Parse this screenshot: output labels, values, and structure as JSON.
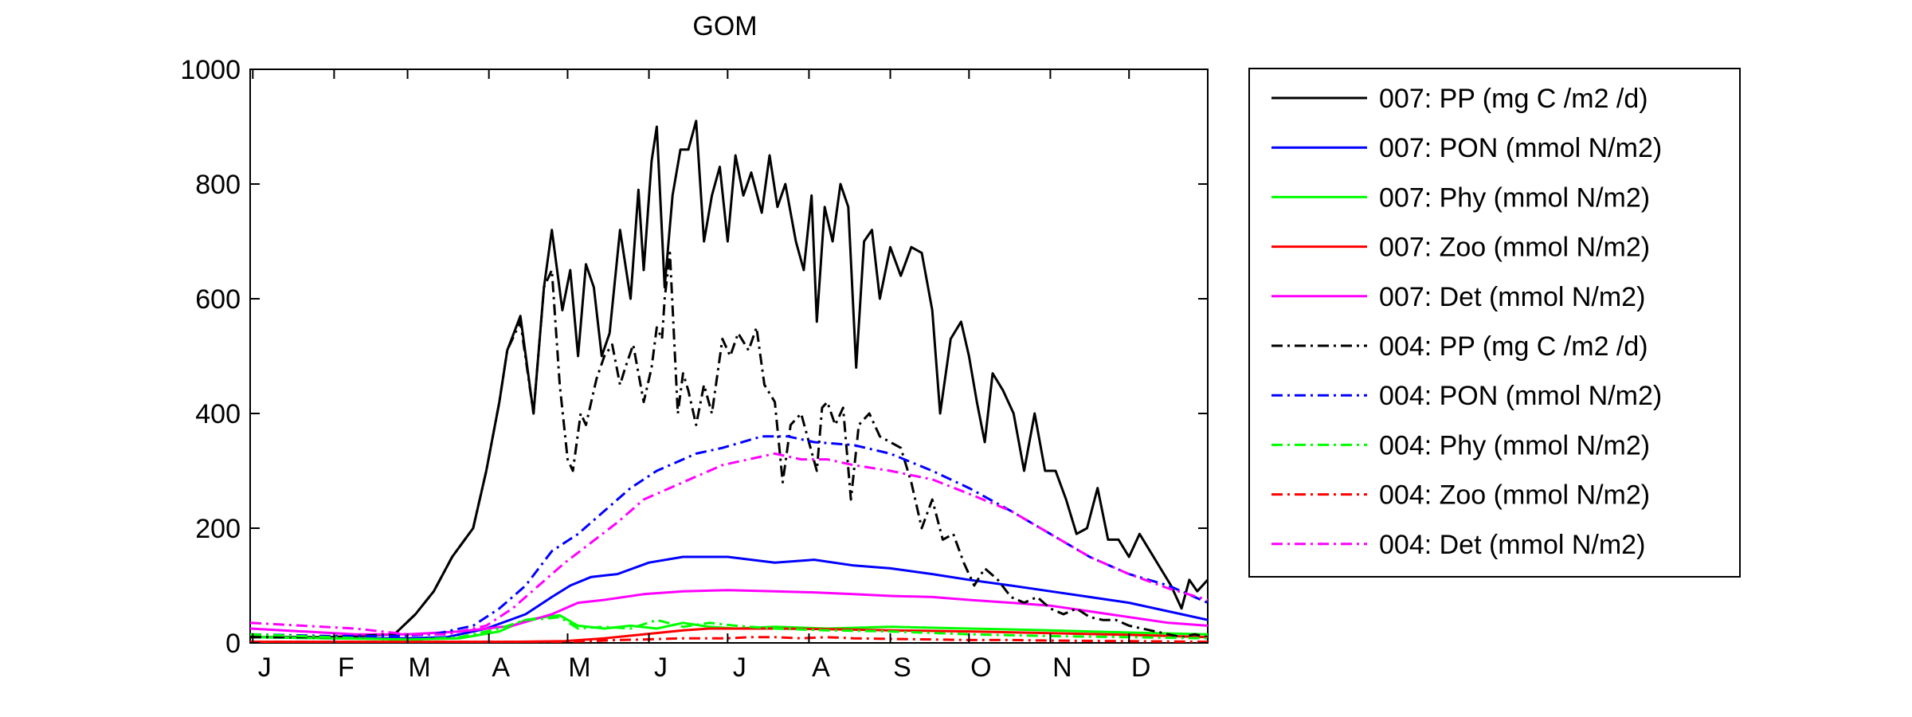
{
  "chart_data": {
    "type": "line",
    "title": "GOM",
    "xlabel": "",
    "ylabel": "",
    "xlim": [
      0,
      365
    ],
    "ylim": [
      0,
      1000
    ],
    "yticks": [
      0,
      200,
      400,
      600,
      800,
      1000
    ],
    "xtick_positions": [
      1,
      32,
      60,
      91,
      121,
      152,
      182,
      213,
      244,
      274,
      305,
      335
    ],
    "xtick_labels": [
      "J",
      "F",
      "M",
      "A",
      "M",
      "J",
      "J",
      "A",
      "S",
      "O",
      "N",
      "D"
    ],
    "grid": false,
    "legend_position": "outside-right",
    "series": [
      {
        "name": "007: PP (mg C /m2 /d)",
        "color": "#000000",
        "dash": "solid",
        "x": [
          0,
          30,
          55,
          63,
          70,
          77,
          85,
          90,
          95,
          98,
          103,
          108,
          112,
          115,
          119,
          122,
          125,
          128,
          131,
          134,
          137,
          141,
          145,
          148,
          150,
          153,
          155,
          158,
          161,
          164,
          167,
          170,
          173,
          176,
          179,
          182,
          185,
          188,
          191,
          195,
          198,
          201,
          204,
          208,
          211,
          214,
          216,
          219,
          222,
          225,
          228,
          231,
          234,
          237,
          240,
          244,
          248,
          252,
          256,
          260,
          263,
          267,
          271,
          274,
          277,
          280,
          283,
          287,
          291,
          295,
          299,
          303,
          307,
          311,
          315,
          319,
          323,
          327,
          331,
          335,
          339,
          343,
          347,
          351,
          355,
          358,
          361,
          365
        ],
        "y": [
          10,
          10,
          15,
          50,
          90,
          150,
          200,
          300,
          420,
          510,
          570,
          400,
          620,
          720,
          580,
          650,
          500,
          660,
          620,
          500,
          540,
          720,
          600,
          790,
          650,
          840,
          900,
          620,
          780,
          860,
          860,
          910,
          700,
          780,
          830,
          700,
          850,
          780,
          820,
          750,
          850,
          760,
          800,
          700,
          650,
          780,
          560,
          760,
          700,
          800,
          760,
          480,
          700,
          720,
          600,
          690,
          640,
          690,
          680,
          580,
          400,
          530,
          560,
          500,
          420,
          350,
          470,
          440,
          400,
          300,
          400,
          300,
          300,
          250,
          190,
          200,
          270,
          180,
          180,
          150,
          190,
          160,
          130,
          100,
          60,
          110,
          90,
          110
        ]
      },
      {
        "name": "007: PON (mmol N/m2)",
        "color": "#0000ff",
        "dash": "solid",
        "x": [
          0,
          30,
          60,
          75,
          90,
          105,
          115,
          122,
          130,
          140,
          152,
          165,
          182,
          200,
          215,
          230,
          244,
          260,
          274,
          290,
          305,
          320,
          335,
          350,
          365
        ],
        "y": [
          10,
          8,
          8,
          10,
          25,
          50,
          80,
          100,
          115,
          120,
          140,
          150,
          150,
          140,
          145,
          135,
          130,
          120,
          110,
          100,
          90,
          80,
          70,
          55,
          40
        ]
      },
      {
        "name": "007: Phy (mmol N/m2)",
        "color": "#00ff00",
        "dash": "solid",
        "x": [
          0,
          30,
          60,
          80,
          95,
          105,
          112,
          118,
          125,
          135,
          145,
          155,
          165,
          175,
          185,
          200,
          220,
          244,
          274,
          305,
          335,
          365
        ],
        "y": [
          10,
          8,
          6,
          8,
          20,
          40,
          45,
          48,
          30,
          25,
          30,
          25,
          35,
          28,
          25,
          28,
          25,
          28,
          25,
          22,
          18,
          15
        ]
      },
      {
        "name": "007: Zoo (mmol N/m2)",
        "color": "#ff0000",
        "dash": "solid",
        "x": [
          0,
          60,
          100,
          120,
          135,
          150,
          165,
          175,
          185,
          200,
          220,
          244,
          274,
          305,
          335,
          365
        ],
        "y": [
          2,
          2,
          2,
          3,
          8,
          15,
          22,
          25,
          25,
          25,
          24,
          22,
          20,
          17,
          14,
          10
        ]
      },
      {
        "name": "007: Det (mmol N/m2)",
        "color": "#ff00ff",
        "dash": "solid",
        "x": [
          0,
          20,
          40,
          60,
          80,
          100,
          115,
          125,
          135,
          150,
          165,
          182,
          200,
          215,
          230,
          244,
          260,
          274,
          290,
          305,
          320,
          335,
          350,
          365
        ],
        "y": [
          25,
          20,
          15,
          15,
          20,
          30,
          50,
          70,
          75,
          85,
          90,
          92,
          90,
          88,
          85,
          82,
          80,
          75,
          70,
          65,
          55,
          45,
          35,
          30
        ]
      },
      {
        "name": "004: PP (mg C /m2 /d)",
        "color": "#000000",
        "dash": "dashdot",
        "x": [
          0,
          30,
          55,
          63,
          70,
          77,
          85,
          90,
          95,
          98,
          103,
          108,
          112,
          115,
          118,
          121,
          123,
          126,
          128,
          130,
          132,
          135,
          138,
          141,
          143,
          146,
          148,
          150,
          153,
          155,
          157,
          158,
          160,
          163,
          165,
          167,
          170,
          173,
          176,
          180,
          183,
          186,
          190,
          193,
          196,
          200,
          203,
          206,
          210,
          213,
          216,
          218,
          220,
          223,
          226,
          229,
          232,
          236,
          240,
          244,
          248,
          252,
          256,
          260,
          264,
          268,
          272,
          276,
          280,
          285,
          290,
          295,
          300,
          305,
          310,
          315,
          320,
          325,
          330,
          335,
          340,
          345,
          350,
          355,
          360,
          365
        ],
        "y": [
          10,
          10,
          15,
          50,
          90,
          150,
          200,
          300,
          420,
          510,
          560,
          400,
          620,
          650,
          450,
          320,
          300,
          400,
          380,
          420,
          460,
          500,
          520,
          450,
          480,
          520,
          470,
          420,
          480,
          550,
          530,
          600,
          680,
          400,
          470,
          440,
          380,
          450,
          400,
          530,
          500,
          540,
          510,
          550,
          450,
          420,
          280,
          380,
          400,
          350,
          300,
          410,
          420,
          380,
          410,
          250,
          380,
          400,
          360,
          350,
          340,
          280,
          200,
          250,
          180,
          190,
          140,
          100,
          130,
          110,
          80,
          70,
          80,
          60,
          50,
          60,
          45,
          40,
          40,
          30,
          25,
          20,
          15,
          10,
          15,
          10
        ]
      },
      {
        "name": "004: PON (mmol N/m2)",
        "color": "#0000ff",
        "dash": "dashdot",
        "x": [
          0,
          30,
          55,
          70,
          85,
          95,
          105,
          115,
          125,
          135,
          145,
          155,
          170,
          180,
          195,
          205,
          215,
          230,
          244,
          260,
          274,
          290,
          305,
          320,
          335,
          350,
          365
        ],
        "y": [
          15,
          12,
          12,
          15,
          30,
          60,
          100,
          160,
          190,
          230,
          270,
          300,
          330,
          340,
          360,
          360,
          350,
          345,
          330,
          300,
          270,
          230,
          190,
          150,
          120,
          100,
          70
        ]
      },
      {
        "name": "004: Phy (mmol N/m2)",
        "color": "#00ff00",
        "dash": "dashdot",
        "x": [
          0,
          30,
          60,
          80,
          95,
          105,
          112,
          118,
          125,
          135,
          145,
          155,
          165,
          175,
          185,
          200,
          220,
          244,
          274,
          305,
          335,
          365
        ],
        "y": [
          15,
          10,
          5,
          10,
          25,
          40,
          42,
          45,
          25,
          28,
          25,
          40,
          28,
          35,
          30,
          25,
          22,
          20,
          15,
          12,
          10,
          8
        ]
      },
      {
        "name": "004: Zoo (mmol N/m2)",
        "color": "#ff0000",
        "dash": "dashdot",
        "x": [
          0,
          60,
          100,
          120,
          130,
          140,
          150,
          165,
          175,
          182,
          190,
          200,
          210,
          220,
          230,
          244,
          260,
          274,
          290,
          305,
          335,
          365
        ],
        "y": [
          2,
          2,
          2,
          2,
          3,
          5,
          6,
          8,
          8,
          8,
          10,
          10,
          8,
          10,
          8,
          7,
          6,
          5,
          5,
          4,
          3,
          2
        ]
      },
      {
        "name": "004: Det (mmol N/m2)",
        "color": "#ff00ff",
        "dash": "dashdot",
        "x": [
          0,
          20,
          40,
          60,
          75,
          90,
          100,
          110,
          120,
          130,
          140,
          150,
          160,
          170,
          180,
          190,
          200,
          210,
          220,
          230,
          244,
          260,
          274,
          290,
          305,
          320,
          335,
          350,
          365
        ],
        "y": [
          35,
          30,
          25,
          15,
          15,
          30,
          60,
          100,
          140,
          175,
          210,
          250,
          270,
          290,
          310,
          320,
          330,
          320,
          320,
          310,
          300,
          285,
          260,
          230,
          190,
          150,
          120,
          95,
          75
        ]
      }
    ]
  }
}
